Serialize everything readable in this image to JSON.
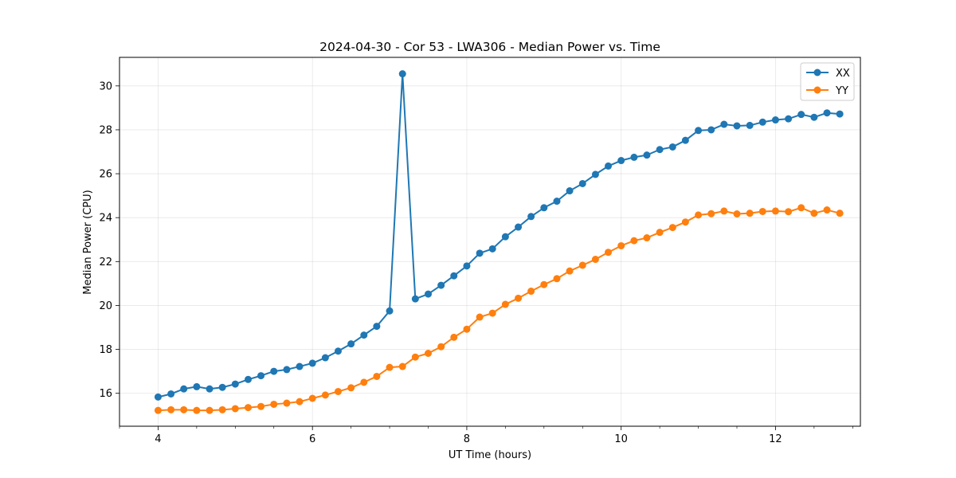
{
  "chart_data": {
    "type": "line",
    "title": "2024-04-30 - Cor 53 - LWA306 - Median Power vs. Time",
    "xlabel": "UT Time (hours)",
    "ylabel": "Median Power (CPU)",
    "xlim": [
      3.5,
      13.1
    ],
    "ylim": [
      14.5,
      31.3
    ],
    "xticks": [
      4,
      6,
      8,
      10,
      12
    ],
    "xtick_labels": [
      "4",
      "6",
      "8",
      "10",
      "12"
    ],
    "yticks": [
      16,
      18,
      20,
      22,
      24,
      26,
      28,
      30
    ],
    "ytick_labels": [
      "16",
      "18",
      "20",
      "22",
      "24",
      "26",
      "28",
      "30"
    ],
    "x_minor_step": 0.5,
    "grid": true,
    "legend_position": "top-right",
    "x": [
      4.0,
      4.167,
      4.333,
      4.5,
      4.667,
      4.833,
      5.0,
      5.167,
      5.333,
      5.5,
      5.667,
      5.833,
      6.0,
      6.167,
      6.333,
      6.5,
      6.667,
      6.833,
      7.0,
      7.167,
      7.333,
      7.5,
      7.667,
      7.833,
      8.0,
      8.167,
      8.333,
      8.5,
      8.667,
      8.833,
      9.0,
      9.167,
      9.333,
      9.5,
      9.667,
      9.833,
      10.0,
      10.167,
      10.333,
      10.5,
      10.667,
      10.833,
      11.0,
      11.167,
      11.333,
      11.5,
      11.667,
      11.833,
      12.0,
      12.167,
      12.333,
      12.5,
      12.667,
      12.833
    ],
    "series": [
      {
        "name": "XX",
        "color": "#1f77b4",
        "values": [
          15.83,
          15.97,
          16.2,
          16.3,
          16.2,
          16.27,
          16.42,
          16.63,
          16.8,
          17.0,
          17.08,
          17.22,
          17.37,
          17.62,
          17.92,
          18.25,
          18.65,
          19.05,
          19.75,
          30.55,
          20.3,
          20.52,
          20.92,
          21.35,
          21.8,
          22.38,
          22.58,
          23.13,
          23.57,
          24.05,
          24.45,
          24.75,
          25.22,
          25.55,
          25.97,
          26.35,
          26.6,
          26.75,
          26.85,
          27.1,
          27.22,
          27.52,
          27.97,
          28.0,
          28.25,
          28.18,
          28.2,
          28.35,
          28.45,
          28.5,
          28.7,
          28.57,
          28.77,
          28.72
        ]
      },
      {
        "name": "YY",
        "color": "#ff7f0e",
        "values": [
          15.22,
          15.25,
          15.25,
          15.22,
          15.22,
          15.25,
          15.3,
          15.35,
          15.4,
          15.5,
          15.55,
          15.62,
          15.77,
          15.92,
          16.08,
          16.25,
          16.5,
          16.77,
          17.18,
          17.22,
          17.65,
          17.82,
          18.12,
          18.55,
          18.92,
          19.47,
          19.65,
          20.05,
          20.33,
          20.65,
          20.95,
          21.22,
          21.57,
          21.83,
          22.1,
          22.42,
          22.72,
          22.95,
          23.08,
          23.33,
          23.55,
          23.8,
          24.12,
          24.18,
          24.3,
          24.17,
          24.2,
          24.28,
          24.3,
          24.27,
          24.45,
          24.2,
          24.35,
          24.2
        ]
      }
    ]
  }
}
